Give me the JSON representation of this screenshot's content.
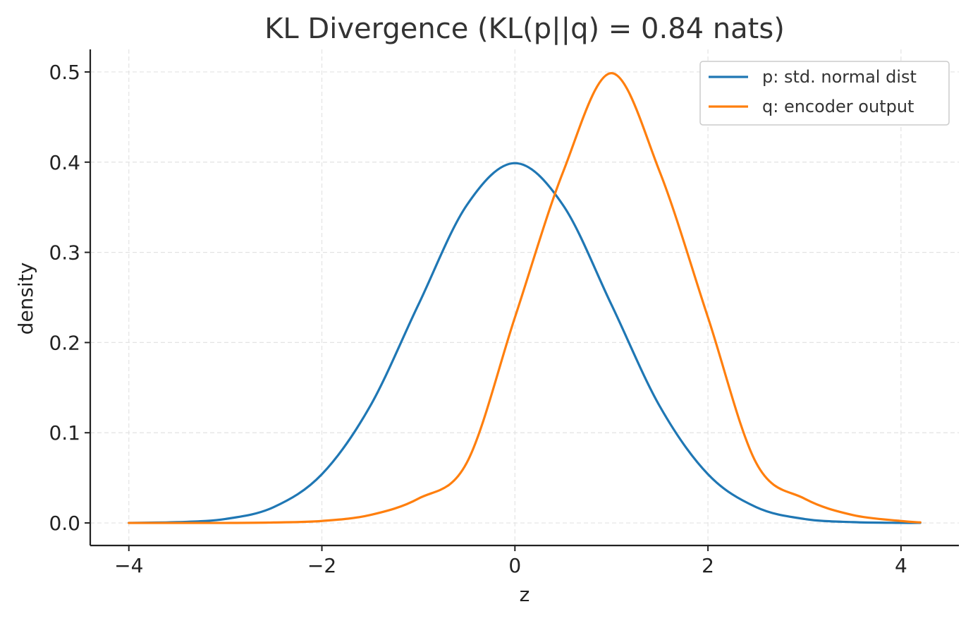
{
  "chart_data": {
    "type": "line",
    "title": "KL Divergence (KL(p||q) = 0.84 nats)",
    "xlabel": "z",
    "ylabel": "density",
    "xlim": [
      -4.4,
      4.6
    ],
    "ylim": [
      -0.025,
      0.525
    ],
    "x_ticks": [
      {
        "value": -4,
        "label": "−4"
      },
      {
        "value": -2,
        "label": "−2"
      },
      {
        "value": 0,
        "label": "0"
      },
      {
        "value": 2,
        "label": "2"
      },
      {
        "value": 4,
        "label": "4"
      }
    ],
    "y_ticks": [
      {
        "value": 0.0,
        "label": "0.0"
      },
      {
        "value": 0.1,
        "label": "0.1"
      },
      {
        "value": 0.2,
        "label": "0.2"
      },
      {
        "value": 0.3,
        "label": "0.3"
      },
      {
        "value": 0.4,
        "label": "0.4"
      },
      {
        "value": 0.5,
        "label": "0.5"
      }
    ],
    "grid": true,
    "legend_position": "top-right",
    "x": [
      -4.0,
      -3.5,
      -3.0,
      -2.5,
      -2.0,
      -1.5,
      -1.0,
      -0.5,
      0.0,
      0.5,
      1.0,
      1.5,
      2.0,
      2.5,
      3.0,
      3.5,
      4.0,
      4.2
    ],
    "series": [
      {
        "name": "p: std. normal dist",
        "color": "#1f77b4",
        "values": [
          0.0001,
          0.0009,
          0.0044,
          0.0175,
          0.054,
          0.1295,
          0.242,
          0.3521,
          0.3989,
          0.3521,
          0.242,
          0.1295,
          0.054,
          0.0175,
          0.0044,
          0.0009,
          0.0001,
          0.0001
        ]
      },
      {
        "name": "q: encoder output",
        "color": "#ff7f0e",
        "values": [
          0.0,
          0.0,
          0.0,
          0.0005,
          0.0022,
          0.0088,
          0.027,
          0.0665,
          0.2279,
          0.3894,
          0.4987,
          0.3894,
          0.2279,
          0.0665,
          0.027,
          0.0088,
          0.0022,
          0.0006
        ]
      }
    ]
  }
}
